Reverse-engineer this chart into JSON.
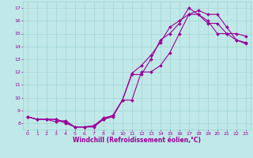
{
  "xlabel": "Windchill (Refroidissement éolien,°C)",
  "bg_color": "#c0e8e8",
  "line_color": "#990099",
  "markersize": 2.0,
  "linewidth": 0.8,
  "xlim": [
    -0.5,
    23.5
  ],
  "ylim": [
    7.5,
    17.5
  ],
  "xticks": [
    0,
    1,
    2,
    3,
    4,
    5,
    6,
    7,
    8,
    9,
    10,
    11,
    12,
    13,
    14,
    15,
    16,
    17,
    18,
    19,
    20,
    21,
    22,
    23
  ],
  "yticks": [
    8,
    9,
    10,
    11,
    12,
    13,
    14,
    15,
    16,
    17
  ],
  "line1_x": [
    0,
    1,
    2,
    3,
    4,
    5,
    6,
    7,
    8,
    9,
    10,
    11,
    12,
    13,
    14,
    15,
    16,
    17,
    18,
    19,
    20,
    21,
    22,
    23
  ],
  "line1_y": [
    8.5,
    8.3,
    8.3,
    8.3,
    8.0,
    7.7,
    7.7,
    7.7,
    8.3,
    8.5,
    9.8,
    11.8,
    11.8,
    13.0,
    14.5,
    15.0,
    15.8,
    17.0,
    16.5,
    15.8,
    15.8,
    15.0,
    15.0,
    14.8
  ],
  "line2_x": [
    0,
    1,
    2,
    3,
    4,
    5,
    6,
    7,
    8,
    9,
    10,
    11,
    12,
    13,
    14,
    15,
    16,
    17,
    18,
    19,
    20,
    21,
    22,
    23
  ],
  "line2_y": [
    8.5,
    8.3,
    8.3,
    8.1,
    8.2,
    7.7,
    7.7,
    7.8,
    8.4,
    8.6,
    9.8,
    11.9,
    12.5,
    13.3,
    14.3,
    15.5,
    16.0,
    16.5,
    16.5,
    16.0,
    15.0,
    15.0,
    14.5,
    14.3
  ],
  "line3_x": [
    0,
    1,
    2,
    3,
    4,
    5,
    6,
    7,
    8,
    9,
    10,
    11,
    12,
    13,
    14,
    15,
    16,
    17,
    18,
    19,
    20,
    21,
    22,
    23
  ],
  "line3_y": [
    8.5,
    8.3,
    8.3,
    8.3,
    8.1,
    7.7,
    7.7,
    7.8,
    8.3,
    8.6,
    9.8,
    9.8,
    12.0,
    12.0,
    12.5,
    13.5,
    15.0,
    16.5,
    16.8,
    16.5,
    16.5,
    15.5,
    14.5,
    14.2
  ],
  "grid_color": "#9dd0d0",
  "tick_labelsize": 4.5,
  "xlabel_fontsize": 5.5
}
